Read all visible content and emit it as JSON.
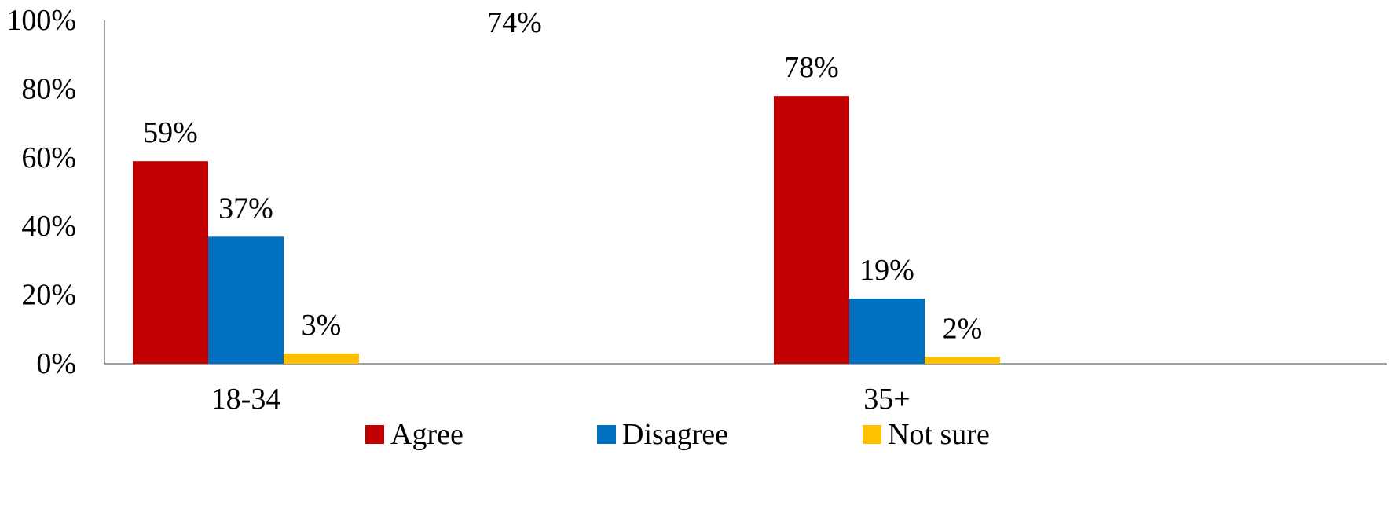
{
  "chart_data": {
    "type": "bar",
    "categories": [
      "18-34",
      "35+"
    ],
    "series": [
      {
        "name": "Agree",
        "values": [
          59,
          78
        ],
        "labels": [
          "59%",
          "78%"
        ],
        "color": "#C00000"
      },
      {
        "name": "Disagree",
        "values": [
          37,
          19
        ],
        "labels": [
          "37%",
          "19%"
        ],
        "color": "#0070C0"
      },
      {
        "name": "Not sure",
        "values": [
          3,
          2
        ],
        "labels": [
          "3%",
          "2%"
        ],
        "color": "#FFC000"
      }
    ],
    "ylim": [
      0,
      100
    ],
    "yticks": [
      "0%",
      "20%",
      "40%",
      "60%",
      "80%",
      "100%"
    ],
    "annotations": [
      "74%"
    ],
    "grid": false,
    "legend_position": "bottom"
  }
}
